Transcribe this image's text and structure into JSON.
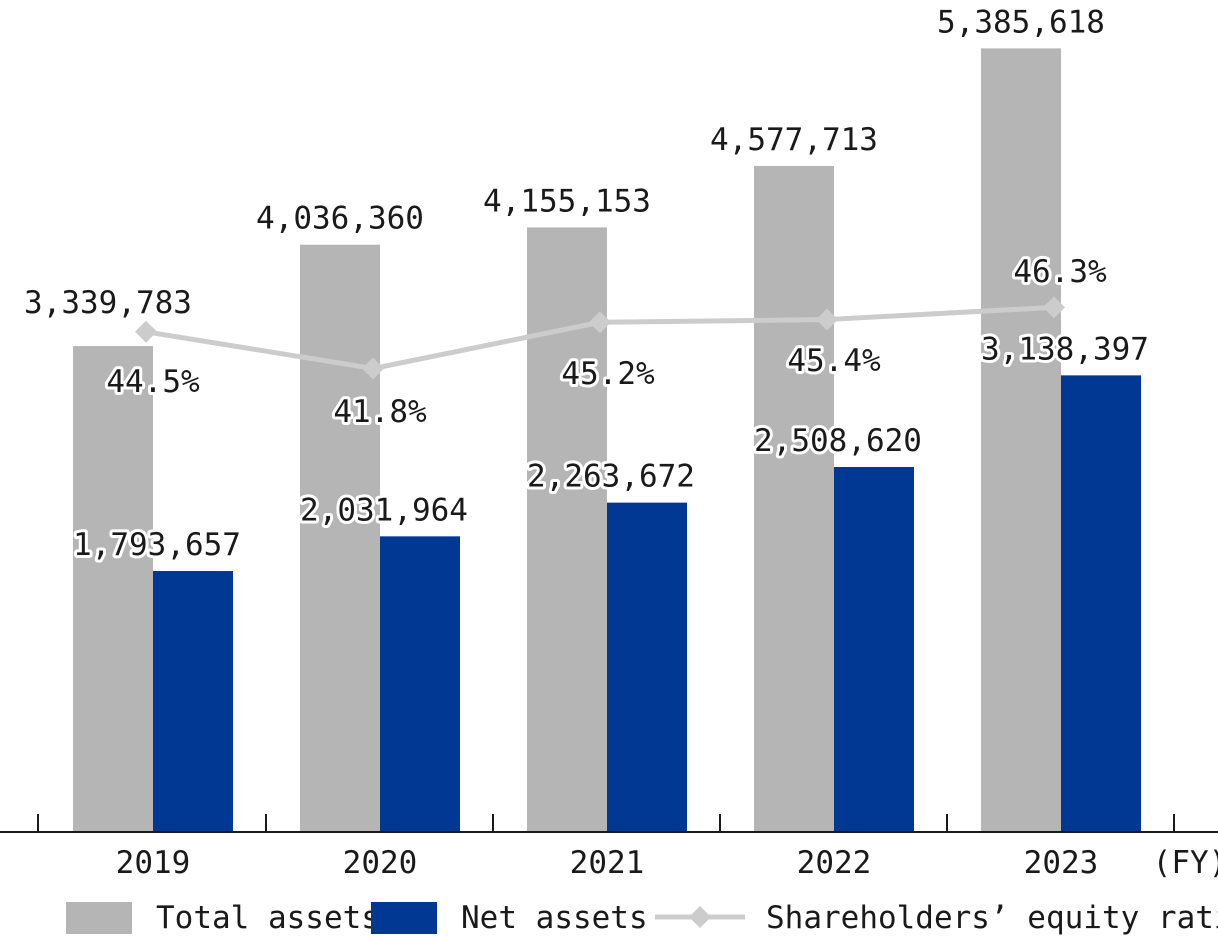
{
  "chart_data": {
    "type": "bar",
    "categories": [
      "2019",
      "2020",
      "2021",
      "2022",
      "2023"
    ],
    "x_unit": "(FY)",
    "series": [
      {
        "name": "Total assets",
        "kind": "bar",
        "color": "#b5b5b5",
        "values": [
          3339783,
          4036360,
          4155153,
          4577713,
          5385618
        ],
        "labels": [
          "3,339,783",
          "4,036,360",
          "4,155,153",
          "4,577,713",
          "5,385,618"
        ]
      },
      {
        "name": "Net assets",
        "kind": "bar",
        "color": "#003893",
        "values": [
          1793657,
          2031964,
          2263672,
          2508620,
          3138397
        ],
        "labels": [
          "1,793,657",
          "2,031,964",
          "2,263,672",
          "2,508,620",
          "3,138,397"
        ]
      },
      {
        "name": "Shareholders’ equity ratio",
        "kind": "line",
        "color": "#cccccc",
        "values": [
          44.5,
          41.8,
          45.2,
          45.4,
          46.3
        ],
        "labels": [
          "44.5%",
          "41.8%",
          "45.2%",
          "45.4%",
          "46.3%"
        ]
      }
    ],
    "ylim": [
      0,
      5800000
    ],
    "ratio_ylim": [
      0,
      100
    ],
    "legend_position": "bottom",
    "grid": false
  }
}
